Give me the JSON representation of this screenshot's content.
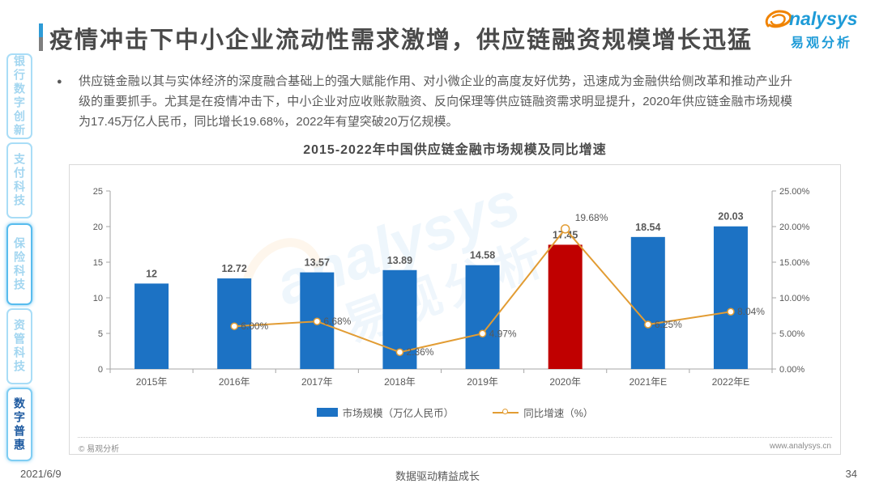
{
  "header": {
    "title": "疫情冲击下中小企业流动性需求激增，供应链融资规模增长迅猛",
    "logo": {
      "brand_visible": "nalysys",
      "brand_cn": "易观分析"
    }
  },
  "sidebar": {
    "items": [
      {
        "label": "银行数字创新"
      },
      {
        "label": "支付科技"
      },
      {
        "label": "保险科技"
      },
      {
        "label": "资管科技"
      },
      {
        "label": "数字普惠"
      }
    ]
  },
  "summary": {
    "bullet": "●",
    "text": "供应链金融以其与实体经济的深度融合基础上的强大赋能作用、对小微企业的高度友好优势，迅速成为金融供给侧改革和推动产业升级的重要抓手。尤其是在疫情冲击下，中小企业对应收账款融资、反向保理等供应链融资需求明显提升，2020年供应链金融市场规模为17.45万亿人民币，同比增长19.68%，2022年有望突破20万亿规模。"
  },
  "chart_data": {
    "type": "bar",
    "title": "2015-2022年中国供应链金融市场规模及同比增速",
    "categories": [
      "2015年",
      "2016年",
      "2017年",
      "2018年",
      "2019年",
      "2020年",
      "2021年E",
      "2022年E"
    ],
    "series": [
      {
        "name": "市场规模（万亿人民币）",
        "type": "bar",
        "axis": "left",
        "values": [
          12,
          12.72,
          13.57,
          13.89,
          14.58,
          17.45,
          18.54,
          20.03
        ],
        "labels": [
          "12",
          "12.72",
          "13.57",
          "13.89",
          "14.58",
          "17.45",
          "18.54",
          "20.03"
        ],
        "highlight_index": 5
      },
      {
        "name": "同比增速（%）",
        "type": "line",
        "axis": "right",
        "values": [
          null,
          6.0,
          6.68,
          2.36,
          4.97,
          19.68,
          6.25,
          8.04
        ],
        "labels": [
          "",
          "6.00%",
          "6.68%",
          "2.36%",
          "4.97%",
          "19.68%",
          "6.25%",
          "8.04%"
        ]
      }
    ],
    "left_axis": {
      "min": 0,
      "max": 25,
      "tick_labels": [
        "0",
        "5",
        "10",
        "15",
        "20",
        "25"
      ]
    },
    "right_axis": {
      "min": 0,
      "max": 25,
      "tick_labels": [
        "0.00%",
        "5.00%",
        "10.00%",
        "15.00%",
        "20.00%",
        "25.00%"
      ]
    },
    "grid": false,
    "legend_position": "bottom"
  },
  "watermark": {
    "brand": "analysys",
    "brand_cn": "易观分析"
  },
  "panel_footer": {
    "copyright": "© 易观分析",
    "website": "www.analysys.cn"
  },
  "footer": {
    "date": "2021/6/9",
    "slogan": "数据驱动精益成长",
    "page": "34"
  },
  "colors": {
    "bar": "#1C72C4",
    "bar_highlight": "#C00000",
    "line": "#E29C33",
    "axis": "#A6A6A6",
    "label": "#595959",
    "accent_blue": "#2E9BD6",
    "logo_blue": "#1E9BD7",
    "logo_orange": "#F08300"
  }
}
